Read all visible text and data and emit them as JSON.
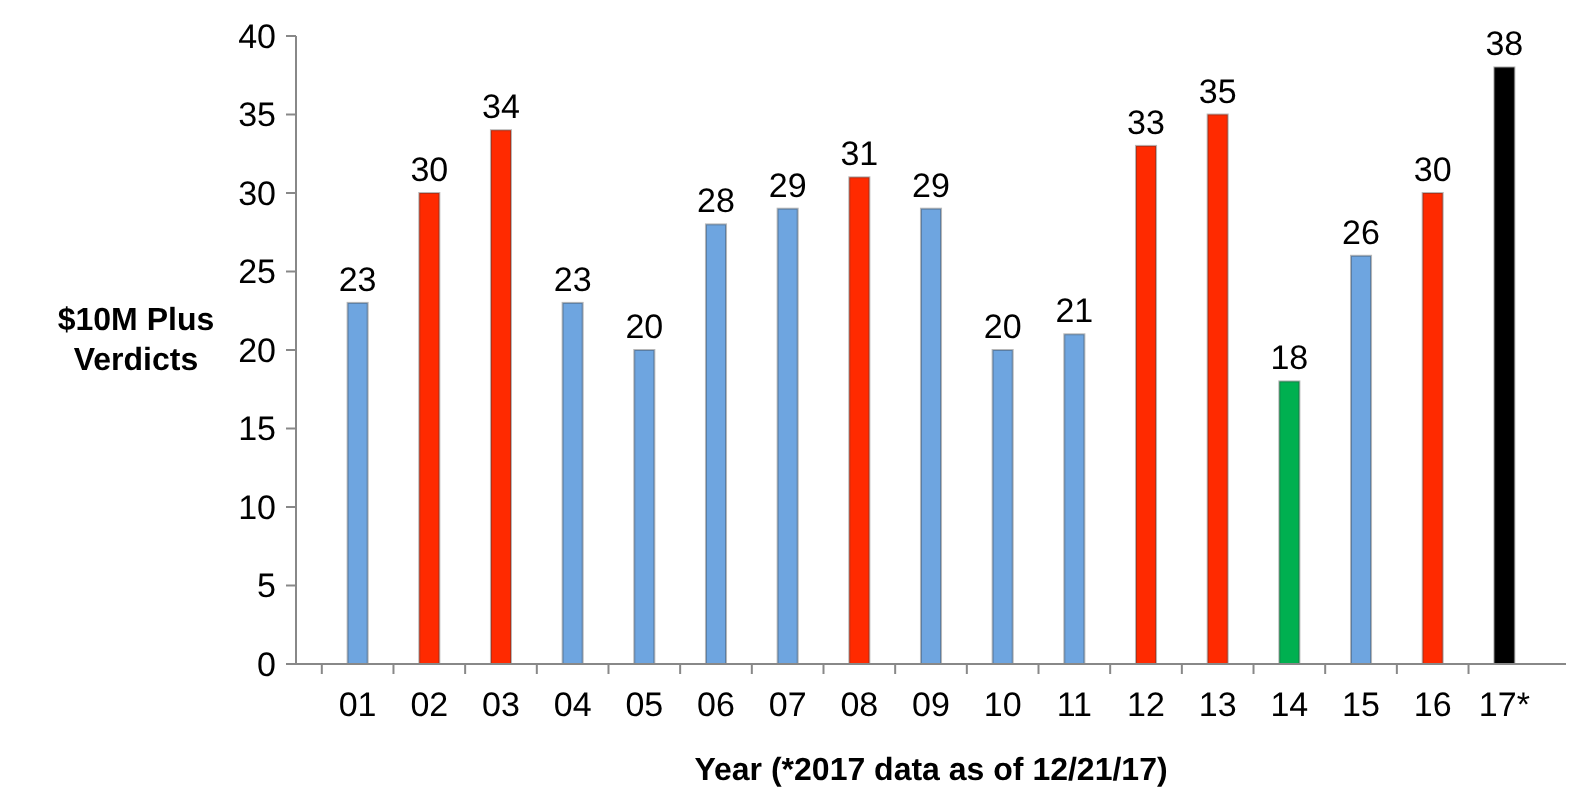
{
  "chart_data": {
    "type": "bar",
    "xlabel": "Year (*2017 data as of 12/21/17)",
    "ylabel": "$10M Plus\nVerdicts",
    "categories": [
      "01",
      "02",
      "03",
      "04",
      "05",
      "06",
      "07",
      "08",
      "09",
      "10",
      "11",
      "12",
      "13",
      "14",
      "15",
      "16",
      "17*"
    ],
    "values": [
      23,
      30,
      34,
      23,
      20,
      28,
      29,
      31,
      29,
      20,
      21,
      33,
      35,
      18,
      26,
      30,
      38
    ],
    "colors": [
      "#6ea5e0",
      "#ff2a00",
      "#ff2a00",
      "#6ea5e0",
      "#6ea5e0",
      "#6ea5e0",
      "#6ea5e0",
      "#ff2a00",
      "#6ea5e0",
      "#6ea5e0",
      "#6ea5e0",
      "#ff2a00",
      "#ff2a00",
      "#00b050",
      "#6ea5e0",
      "#ff2a00",
      "#000000"
    ],
    "ylim": [
      0,
      40
    ],
    "yticks": [
      0,
      5,
      10,
      15,
      20,
      25,
      30,
      35,
      40
    ],
    "data_labels": true,
    "grid": false
  }
}
